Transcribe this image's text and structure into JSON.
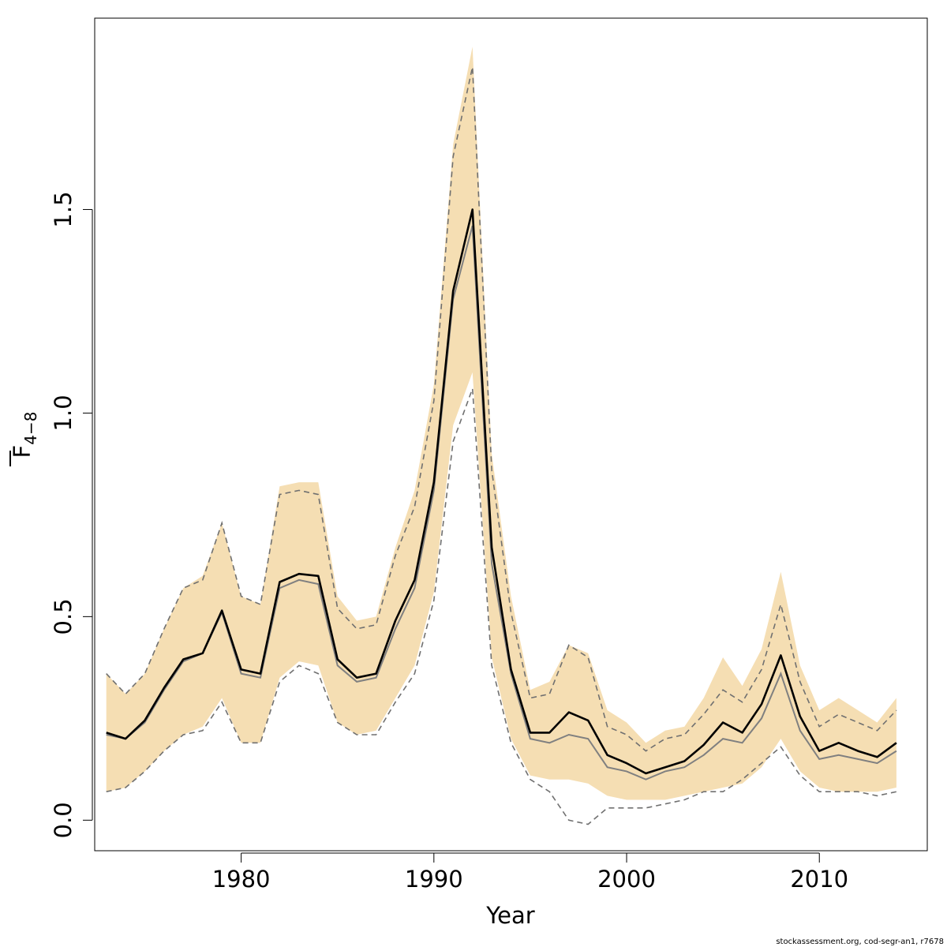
{
  "chart_data": {
    "type": "line",
    "xlabel": "Year",
    "ylabel_main": "F",
    "ylabel_sub": "4−8",
    "xlim": [
      1972.4,
      2015.6
    ],
    "ylim": [
      -0.075,
      1.97
    ],
    "x_ticks": [
      1980,
      1990,
      2000,
      2010
    ],
    "x_tick_labels": [
      "1980",
      "1990",
      "2000",
      "2010"
    ],
    "y_ticks": [
      0.0,
      0.5,
      1.0,
      1.5
    ],
    "y_tick_labels": [
      "0.0",
      "0.5",
      "1.0",
      "1.5"
    ],
    "grid": false,
    "legend": "none",
    "colors": {
      "band": "#f5deb3",
      "estimate": "#000000",
      "reference": "#808080",
      "ci": "#707070"
    },
    "years": [
      1973,
      1974,
      1975,
      1976,
      1977,
      1978,
      1979,
      1980,
      1981,
      1982,
      1983,
      1984,
      1985,
      1986,
      1987,
      1988,
      1989,
      1990,
      1991,
      1992,
      1993,
      1994,
      1995,
      1996,
      1997,
      1998,
      1999,
      2000,
      2001,
      2002,
      2003,
      2004,
      2005,
      2006,
      2007,
      2008,
      2009,
      2010,
      2011,
      2012,
      2013,
      2014
    ],
    "series": [
      {
        "role": "band",
        "lower": [
          0.07,
          0.08,
          0.12,
          0.17,
          0.21,
          0.23,
          0.3,
          0.19,
          0.19,
          0.35,
          0.39,
          0.38,
          0.24,
          0.21,
          0.22,
          0.3,
          0.38,
          0.56,
          0.97,
          1.1,
          0.4,
          0.2,
          0.11,
          0.1,
          0.1,
          0.09,
          0.06,
          0.05,
          0.05,
          0.05,
          0.06,
          0.07,
          0.08,
          0.09,
          0.13,
          0.2,
          0.12,
          0.08,
          0.07,
          0.07,
          0.07,
          0.08
        ],
        "upper": [
          0.36,
          0.31,
          0.36,
          0.47,
          0.57,
          0.6,
          0.73,
          0.55,
          0.53,
          0.82,
          0.83,
          0.83,
          0.55,
          0.49,
          0.5,
          0.67,
          0.81,
          1.07,
          1.66,
          1.9,
          0.9,
          0.55,
          0.32,
          0.34,
          0.43,
          0.41,
          0.27,
          0.24,
          0.19,
          0.22,
          0.23,
          0.3,
          0.4,
          0.33,
          0.42,
          0.61,
          0.38,
          0.27,
          0.3,
          0.27,
          0.24,
          0.3
        ]
      },
      {
        "role": "ci",
        "lower": [
          0.07,
          0.08,
          0.12,
          0.17,
          0.21,
          0.22,
          0.29,
          0.19,
          0.19,
          0.34,
          0.38,
          0.36,
          0.24,
          0.21,
          0.21,
          0.29,
          0.36,
          0.54,
          0.93,
          1.06,
          0.38,
          0.19,
          0.1,
          0.07,
          0.0,
          -0.01,
          0.03,
          0.03,
          0.03,
          0.04,
          0.05,
          0.07,
          0.07,
          0.1,
          0.14,
          0.18,
          0.11,
          0.07,
          0.07,
          0.07,
          0.06,
          0.07
        ],
        "upper": [
          0.36,
          0.31,
          0.36,
          0.47,
          0.57,
          0.59,
          0.73,
          0.55,
          0.53,
          0.8,
          0.81,
          0.8,
          0.52,
          0.47,
          0.48,
          0.65,
          0.77,
          1.03,
          1.63,
          1.85,
          0.86,
          0.51,
          0.3,
          0.31,
          0.43,
          0.4,
          0.23,
          0.21,
          0.17,
          0.2,
          0.21,
          0.26,
          0.32,
          0.29,
          0.37,
          0.53,
          0.34,
          0.23,
          0.26,
          0.24,
          0.22,
          0.27
        ]
      },
      {
        "role": "reference",
        "values": [
          0.21,
          0.2,
          0.24,
          0.32,
          0.39,
          0.41,
          0.51,
          0.36,
          0.35,
          0.57,
          0.59,
          0.58,
          0.38,
          0.34,
          0.35,
          0.47,
          0.57,
          0.81,
          1.28,
          1.46,
          0.63,
          0.36,
          0.2,
          0.19,
          0.21,
          0.2,
          0.13,
          0.12,
          0.1,
          0.12,
          0.13,
          0.16,
          0.2,
          0.19,
          0.25,
          0.36,
          0.22,
          0.15,
          0.16,
          0.15,
          0.14,
          0.17
        ]
      },
      {
        "role": "estimate",
        "values": [
          0.215,
          0.2,
          0.245,
          0.325,
          0.395,
          0.41,
          0.515,
          0.37,
          0.36,
          0.585,
          0.605,
          0.6,
          0.395,
          0.35,
          0.36,
          0.49,
          0.59,
          0.83,
          1.3,
          1.5,
          0.67,
          0.37,
          0.215,
          0.215,
          0.265,
          0.245,
          0.16,
          0.14,
          0.115,
          0.13,
          0.145,
          0.185,
          0.24,
          0.215,
          0.285,
          0.405,
          0.255,
          0.17,
          0.19,
          0.17,
          0.155,
          0.19
        ]
      }
    ]
  },
  "footer": {
    "text": "stockassessment.org, cod-segr-an1, r7678"
  }
}
